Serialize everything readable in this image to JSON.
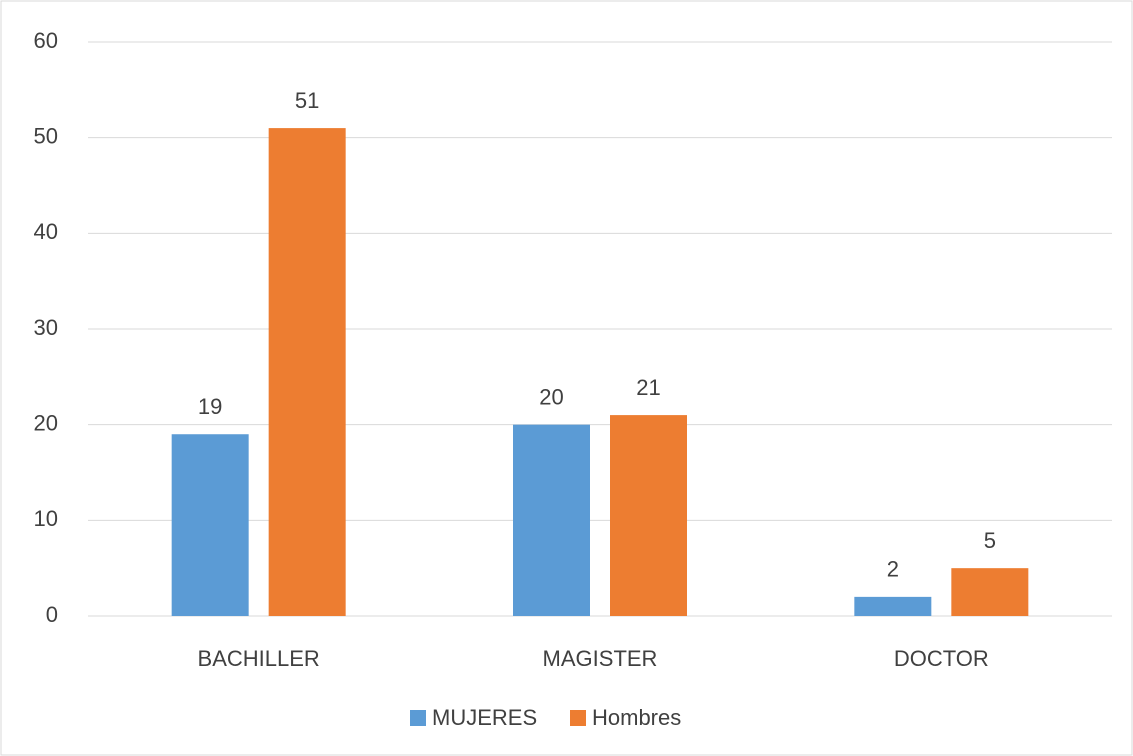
{
  "chart_data": {
    "type": "bar",
    "categories": [
      "BACHILLER",
      "MAGISTER",
      "DOCTOR"
    ],
    "series": [
      {
        "name": "MUJERES",
        "color": "#5b9bd5",
        "values": [
          19,
          20,
          2
        ]
      },
      {
        "name": "Hombres",
        "color": "#ed7d31",
        "values": [
          51,
          21,
          5
        ]
      }
    ],
    "ylim": [
      0,
      60
    ],
    "yticks": [
      0,
      10,
      20,
      30,
      40,
      50,
      60
    ],
    "grid": true,
    "legend": "bottom"
  }
}
